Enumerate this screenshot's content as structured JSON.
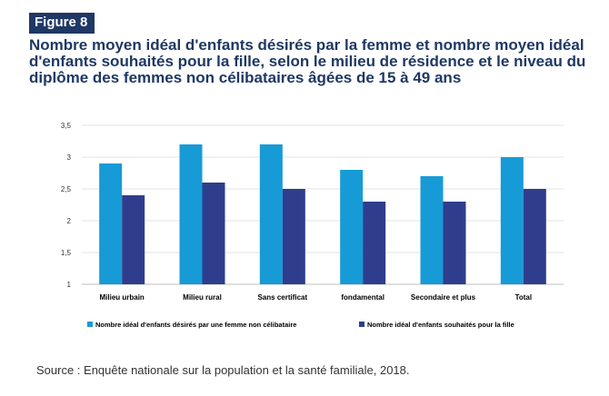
{
  "figure": {
    "badge": "Figure 8",
    "title": "Nombre moyen idéal d'enfants désirés par la femme et nombre moyen idéal d'enfants souhaités pour la fille, selon le milieu de résidence et le niveau du diplôme des femmes non célibataires âgées de 15 à 49 ans",
    "source": "Source : Enquête nationale sur la population et la santé familiale, 2018."
  },
  "chart_data": {
    "type": "bar",
    "title": "Nombre moyen idéal d'enfants désirés par la femme et nombre moyen idéal d'enfants souhaités pour la fille, selon le milieu de résidence et le niveau du diplôme des femmes non célibataires âgées de 15 à 49 ans",
    "categories": [
      "Milieu urbain",
      "Milieu rural",
      "Sans certificat",
      "fondamental",
      "Secondaire et plus",
      "Total"
    ],
    "series": [
      {
        "name": "Nombre idéal d'enfants désirés par une femme non célibataire",
        "color": "#179bd7",
        "values": [
          2.9,
          3.2,
          3.2,
          2.8,
          2.7,
          3.0
        ]
      },
      {
        "name": "Nombre idéal d'enfants souhaités pour la fille",
        "color": "#2e3e8c",
        "values": [
          2.4,
          2.6,
          2.5,
          2.3,
          2.3,
          2.5
        ]
      }
    ],
    "ylim": [
      1,
      3.5
    ],
    "yticks": [
      "1",
      "1,5",
      "2",
      "2,5",
      "3",
      "3,5"
    ],
    "ytick_values": [
      1,
      1.5,
      2,
      2.5,
      3,
      3.5
    ],
    "xlabel": "",
    "ylabel": "",
    "grid": true,
    "legend": "bottom"
  }
}
